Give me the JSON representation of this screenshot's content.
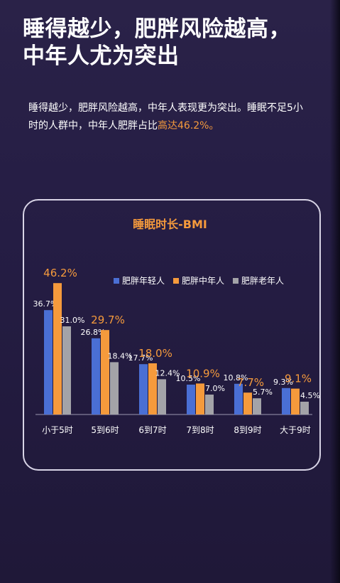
{
  "title_lines": [
    "睡得越少，肥胖风险越高，",
    "中年人尤为突出"
  ],
  "intro": {
    "main": "睡得越少，肥胖风险越高，中年人表现更为突出。睡眠不足5小时的人群中，中年人肥胖占比",
    "highlight": "高达46.2%。"
  },
  "colors": {
    "young": "#4a6fd4",
    "middle": "#f59a3c",
    "old": "#a3a3a8",
    "highlight": "#f59a3c"
  },
  "chart_data": {
    "type": "bar",
    "title": "睡眠时长-BMI",
    "categories": [
      "小于5时",
      "5到6时",
      "6到7时",
      "7到8时",
      "8到9时",
      "大于9时"
    ],
    "series": [
      {
        "name": "肥胖年轻人",
        "values": [
          36.7,
          26.8,
          17.7,
          10.5,
          10.8,
          9.3
        ]
      },
      {
        "name": "肥胖中年人",
        "values": [
          46.2,
          29.7,
          18.0,
          10.9,
          7.7,
          9.1
        ]
      },
      {
        "name": "肥胖老年人",
        "values": [
          31.0,
          18.4,
          12.4,
          7.0,
          5.7,
          4.5
        ]
      }
    ],
    "value_labels": [
      [
        "36.7%",
        "26.8%",
        "17.7%",
        "10.5%",
        "10.8%",
        "9.3%"
      ],
      [
        "46.2%",
        "29.7%",
        "18.0%",
        "10.9%",
        "7.7%",
        "9.1%"
      ],
      [
        "31.0%",
        "18.4%",
        "12.4%",
        "7.0%",
        "5.7%",
        "4.5%"
      ]
    ],
    "ylim": [
      0,
      50
    ],
    "grid": false,
    "legend_position": "top-right"
  }
}
